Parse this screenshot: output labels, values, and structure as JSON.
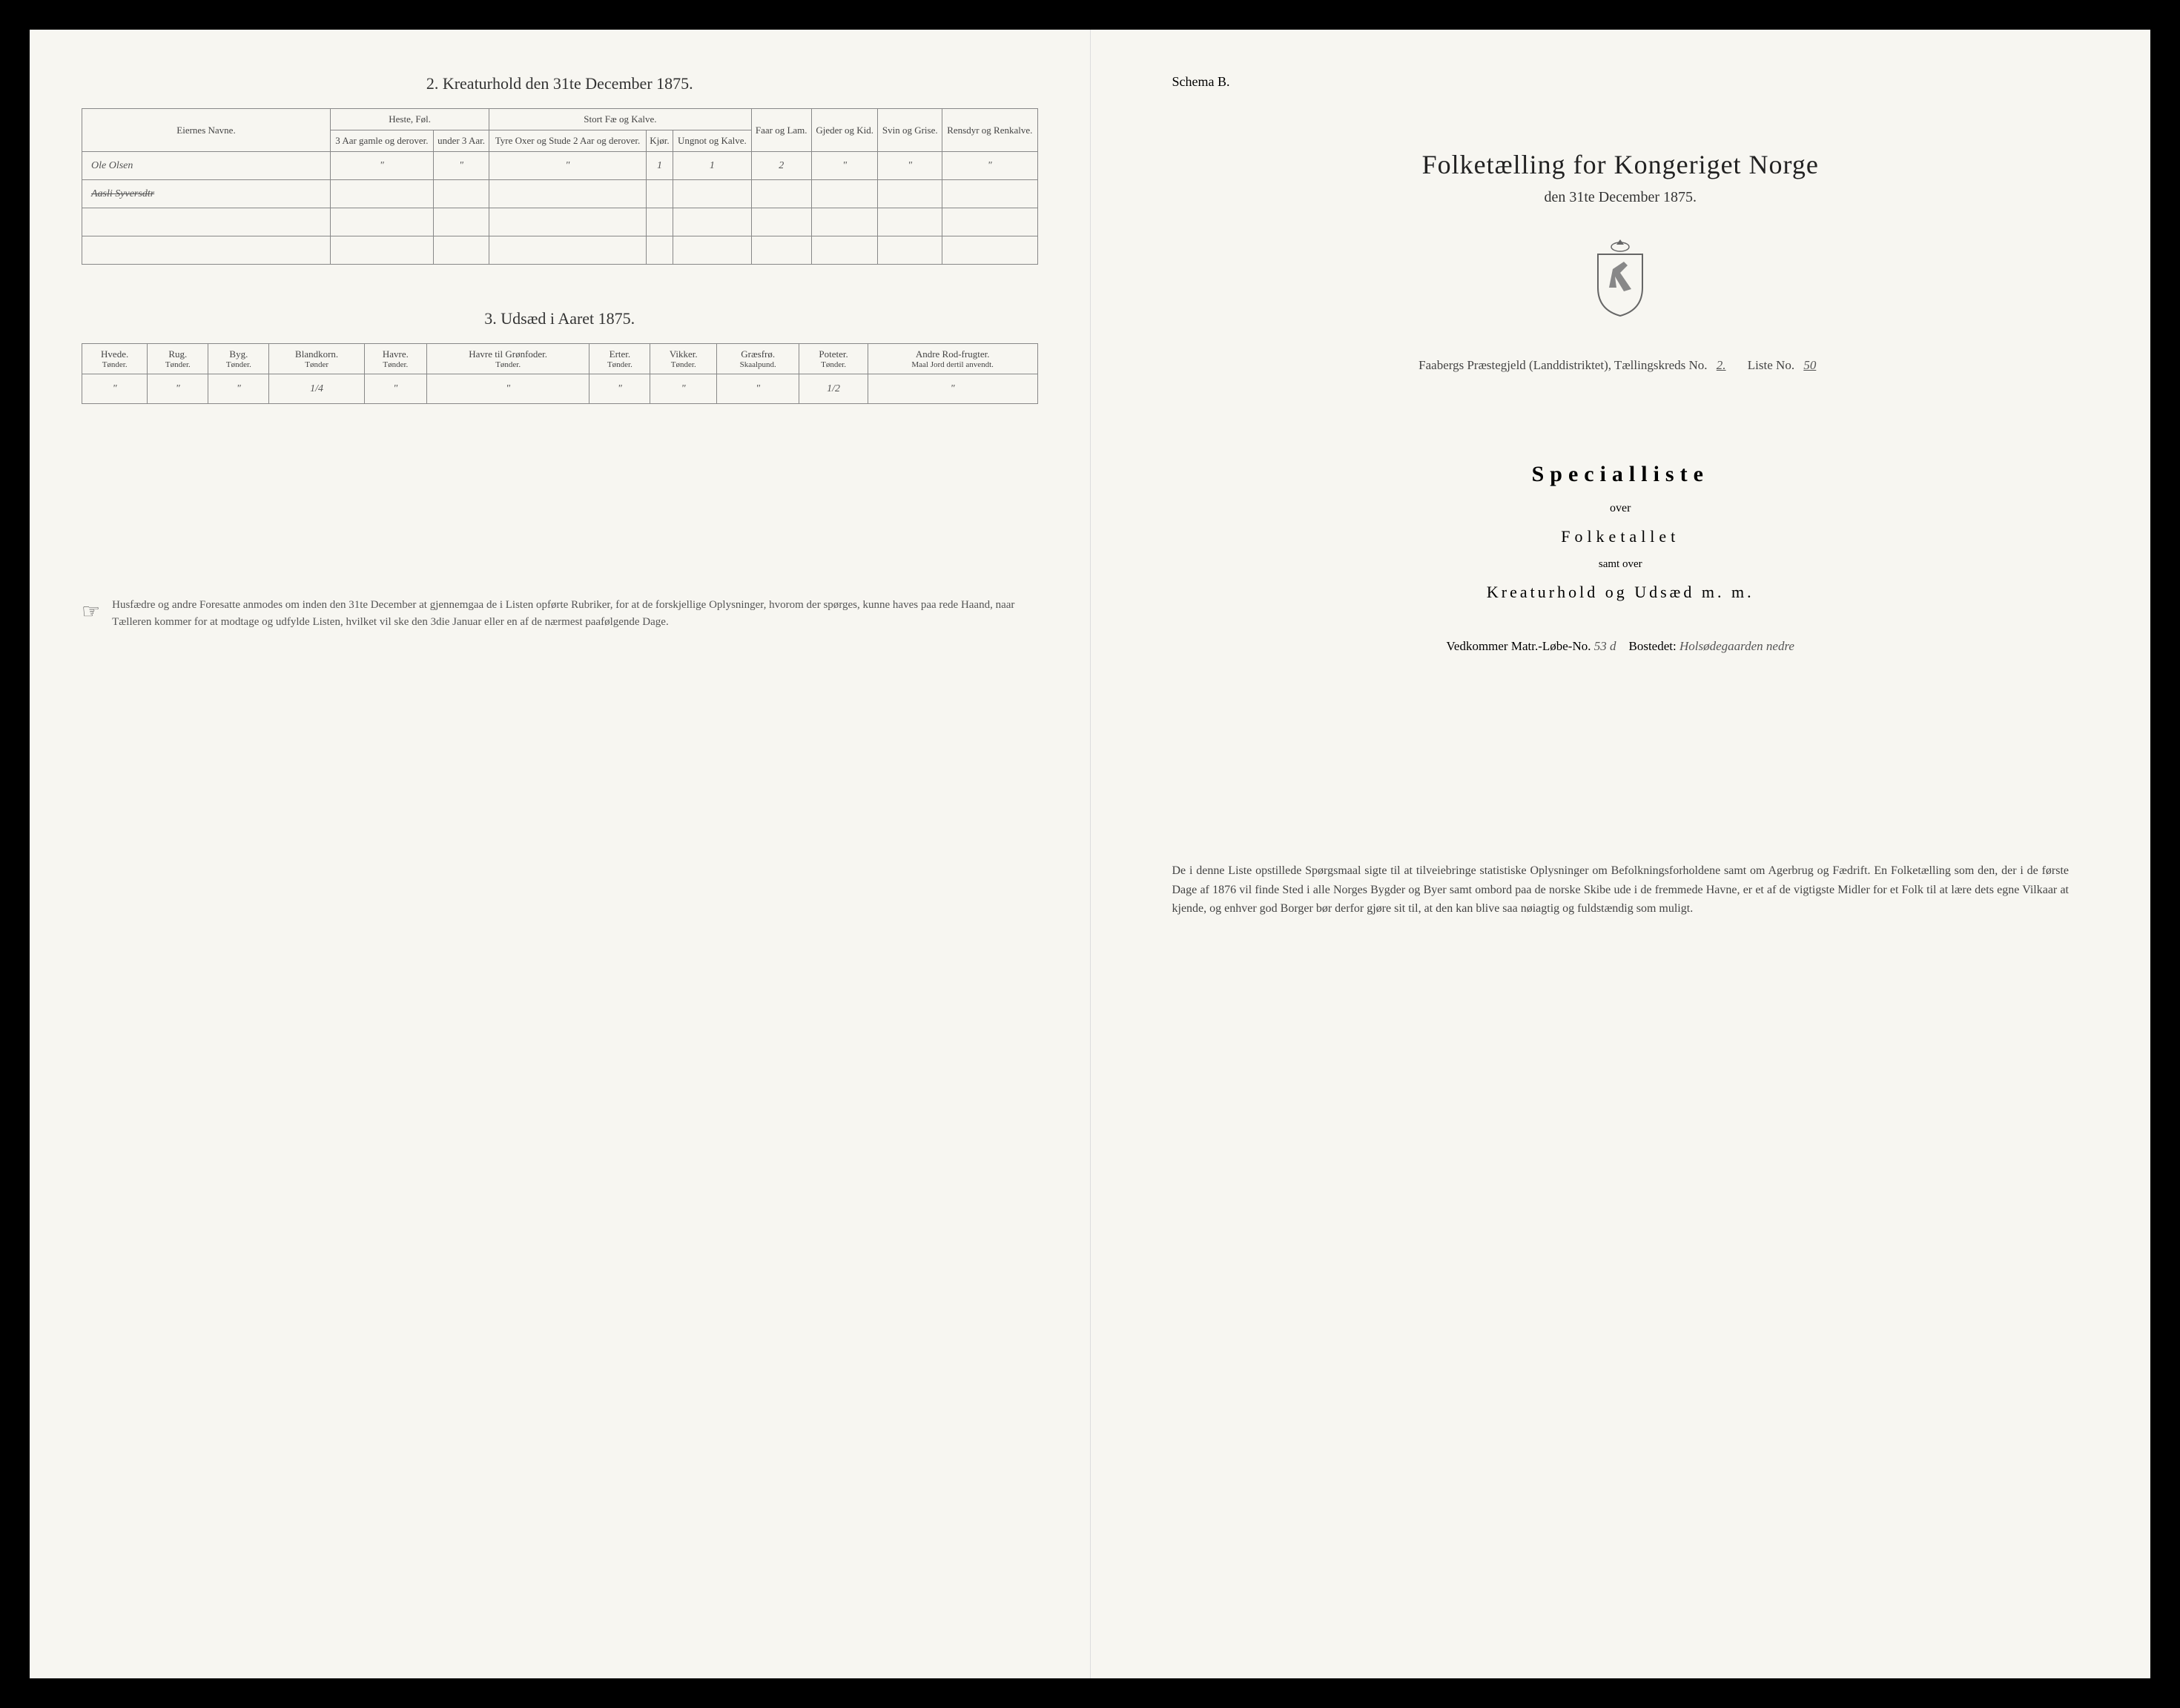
{
  "leftPage": {
    "section2": {
      "title": "2.  Kreaturhold den 31te December 1875.",
      "headers": {
        "owner": "Eiernes Navne.",
        "horses": "Heste, Føl.",
        "horses_sub1": "3 Aar gamle og derover.",
        "horses_sub2": "under 3 Aar.",
        "cattle": "Stort Fæ og Kalve.",
        "cattle_sub1": "Tyre Oxer og Stude 2 Aar og derover.",
        "cattle_sub2": "Kjør.",
        "cattle_sub3": "Ungnot og Kalve.",
        "sheep": "Faar og Lam.",
        "goats": "Gjeder og Kid.",
        "pigs": "Svin og Grise.",
        "reindeer": "Rensdyr og Renkalve."
      },
      "rows": [
        {
          "owner": "Ole Olsen",
          "h1": "\"",
          "h2": "\"",
          "c1": "\"",
          "c2": "1",
          "c3": "1",
          "sheep": "2",
          "goats": "\"",
          "pigs": "\"",
          "reindeer": "\""
        },
        {
          "owner": "Aasli Syversdtr",
          "struck": true,
          "h1": "",
          "h2": "",
          "c1": "",
          "c2": "",
          "c3": "",
          "sheep": "",
          "goats": "",
          "pigs": "",
          "reindeer": ""
        }
      ]
    },
    "section3": {
      "title": "3.  Udsæd i Aaret 1875.",
      "headers": [
        {
          "main": "Hvede.",
          "sub": "Tønder."
        },
        {
          "main": "Rug.",
          "sub": "Tønder."
        },
        {
          "main": "Byg.",
          "sub": "Tønder."
        },
        {
          "main": "Blandkorn.",
          "sub": "Tønder"
        },
        {
          "main": "Havre.",
          "sub": "Tønder."
        },
        {
          "main": "Havre til Grønfoder.",
          "sub": "Tønder."
        },
        {
          "main": "Erter.",
          "sub": "Tønder."
        },
        {
          "main": "Vikker.",
          "sub": "Tønder."
        },
        {
          "main": "Græsfrø.",
          "sub": "Skaalpund."
        },
        {
          "main": "Poteter.",
          "sub": "Tønder."
        },
        {
          "main": "Andre Rod-frugter.",
          "sub": "Maal Jord dertil anvendt."
        }
      ],
      "values": [
        "\"",
        "\"",
        "\"",
        "1/4",
        "\"",
        "\"",
        "\"",
        "\"",
        "\"",
        "1/2",
        "\""
      ]
    },
    "footerNote": "Husfædre og andre Foresatte anmodes om inden den 31te December at gjennemgaa de i Listen opførte Rubriker, for at de forskjellige Oplysninger, hvorom der spørges, kunne haves paa rede Haand, naar Tælleren kommer for at modtage og udfylde Listen, hvilket vil ske den 3die Januar eller en af de nærmest paafølgende Dage."
  },
  "rightPage": {
    "schemaLabel": "Schema B.",
    "mainTitle": "Folketælling for Kongeriget Norge",
    "mainSubtitle": "den 31te December 1875.",
    "districtPrefix": "Faabergs Præstegjeld (Landdistriktet), Tællingskreds No.",
    "districtNo": "2.",
    "listeLabel": "Liste No.",
    "listeNo": "50",
    "specialliste": "Specialliste",
    "over": "over",
    "folketallet": "Folketallet",
    "samtOver": "samt over",
    "kreaturLine": "Kreaturhold og Udsæd m. m.",
    "vedkommerPrefix": "Vedkommer Matr.-Løbe-No.",
    "matrNo": "53 d",
    "bostedetLabel": "Bostedet:",
    "bostedet": "Holsødegaarden nedre",
    "bottomPara": "De i denne Liste opstillede Spørgsmaal sigte til at tilveiebringe statistiske Oplysninger om Befolkningsforholdene samt om Agerbrug og Fædrift. En Folketælling som den, der i de første Dage af 1876 vil finde Sted i alle Norges Bygder og Byer samt ombord paa de norske Skibe ude i de fremmede Havne, er et af de vigtigste Midler for et Folk til at lære dets egne Vilkaar at kjende, og enhver god Borger bør derfor gjøre sit til, at den kan blive saa nøiagtig og fuldstændig som muligt."
  }
}
